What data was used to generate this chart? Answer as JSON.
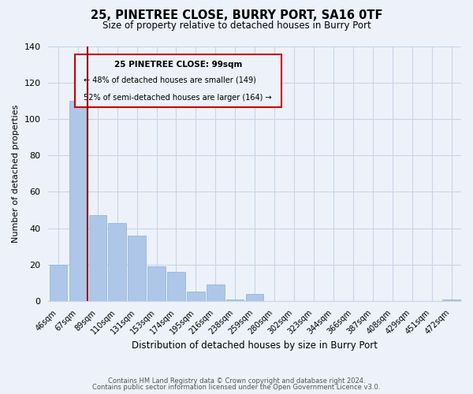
{
  "title": "25, PINETREE CLOSE, BURRY PORT, SA16 0TF",
  "subtitle": "Size of property relative to detached houses in Burry Port",
  "xlabel": "Distribution of detached houses by size in Burry Port",
  "ylabel": "Number of detached properties",
  "bar_labels": [
    "46sqm",
    "67sqm",
    "89sqm",
    "110sqm",
    "131sqm",
    "153sqm",
    "174sqm",
    "195sqm",
    "216sqm",
    "238sqm",
    "259sqm",
    "280sqm",
    "302sqm",
    "323sqm",
    "344sqm",
    "366sqm",
    "387sqm",
    "408sqm",
    "429sqm",
    "451sqm",
    "472sqm"
  ],
  "bar_values": [
    20,
    110,
    47,
    43,
    36,
    19,
    16,
    5,
    9,
    1,
    4,
    0,
    0,
    0,
    0,
    0,
    0,
    0,
    0,
    0,
    1
  ],
  "bar_color": "#aec6e8",
  "bar_edge_color": "#8ab0d8",
  "ylim": [
    0,
    140
  ],
  "yticks": [
    0,
    20,
    40,
    60,
    80,
    100,
    120,
    140
  ],
  "vline_x": 1.5,
  "vline_color": "#8b0000",
  "annotation_title": "25 PINETREE CLOSE: 99sqm",
  "annotation_line1": "← 48% of detached houses are smaller (149)",
  "annotation_line2": "52% of semi-detached houses are larger (164) →",
  "annotation_box_color": "#cc0000",
  "footer_line1": "Contains HM Land Registry data © Crown copyright and database right 2024.",
  "footer_line2": "Contains public sector information licensed under the Open Government Licence v3.0.",
  "background_color": "#edf2fa",
  "grid_color": "#c8d4e8"
}
